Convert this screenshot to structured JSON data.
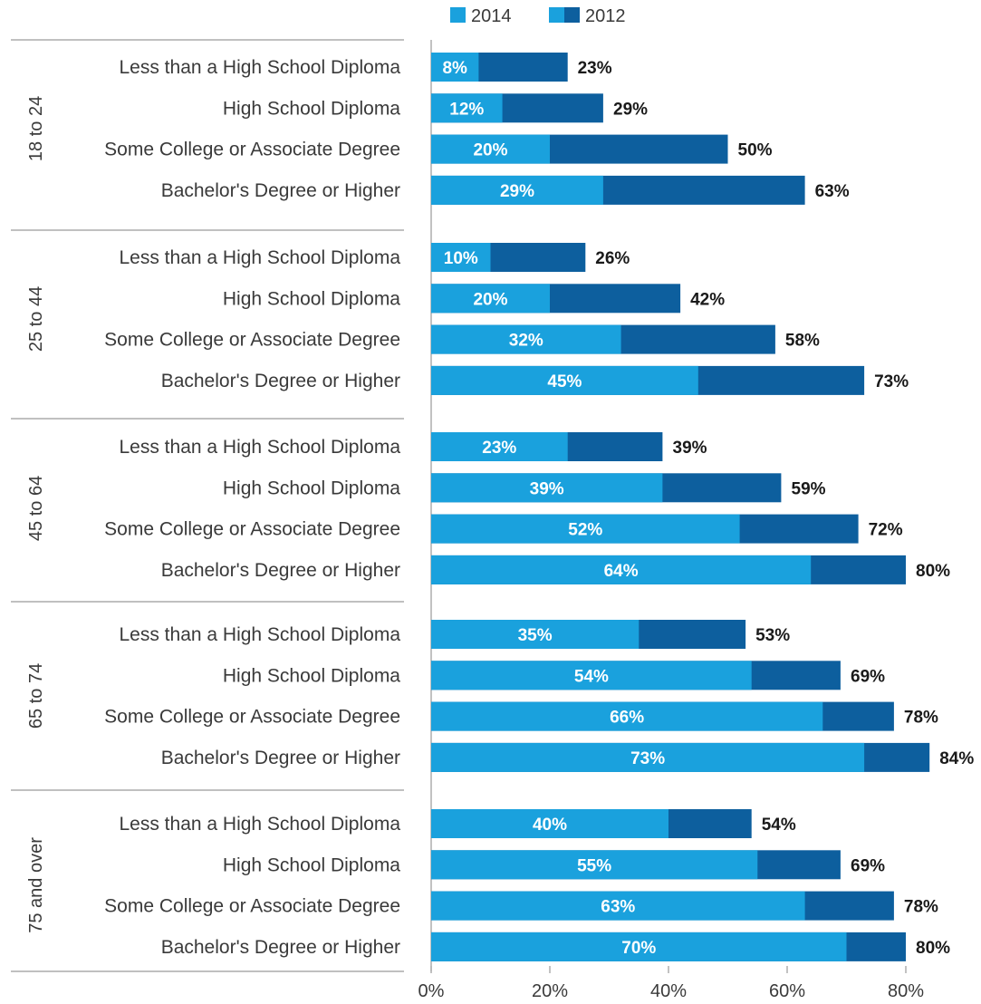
{
  "chart_data": {
    "type": "bar",
    "orientation": "horizontal",
    "stacking": "overlay",
    "xlim": [
      0,
      80
    ],
    "xticks": [
      "0%",
      "20%",
      "40%",
      "60%",
      "80%"
    ],
    "legend": {
      "placement": "top-center",
      "entries": [
        {
          "label": "2014",
          "color": "#1aa1dd"
        },
        {
          "label": "2012",
          "color": "#0d5f9e"
        }
      ]
    },
    "colors": {
      "y2014": "#1aa1dd",
      "y2012": "#0d5f9e"
    },
    "series": [
      {
        "name": "2014"
      },
      {
        "name": "2012"
      }
    ],
    "groups": [
      {
        "name": "18 to 24",
        "rows": [
          {
            "category": "Less than a High School Diploma",
            "v2014": 8,
            "l2014": "8%",
            "v2012": 23,
            "l2012": "23%"
          },
          {
            "category": "High School Diploma",
            "v2014": 12,
            "l2014": "12%",
            "v2012": 29,
            "l2012": "29%"
          },
          {
            "category": "Some College or Associate Degree",
            "v2014": 20,
            "l2014": "20%",
            "v2012": 50,
            "l2012": "50%"
          },
          {
            "category": "Bachelor's Degree or Higher",
            "v2014": 29,
            "l2014": "29%",
            "v2012": 63,
            "l2012": "63%"
          }
        ]
      },
      {
        "name": "25 to 44",
        "rows": [
          {
            "category": "Less than a High School Diploma",
            "v2014": 10,
            "l2014": "10%",
            "v2012": 26,
            "l2012": "26%"
          },
          {
            "category": "High School Diploma",
            "v2014": 20,
            "l2014": "20%",
            "v2012": 42,
            "l2012": "42%"
          },
          {
            "category": "Some College or Associate Degree",
            "v2014": 32,
            "l2014": "32%",
            "v2012": 58,
            "l2012": "58%"
          },
          {
            "category": "Bachelor's Degree or Higher",
            "v2014": 45,
            "l2014": "45%",
            "v2012": 73,
            "l2012": "73%"
          }
        ]
      },
      {
        "name": "45 to 64",
        "rows": [
          {
            "category": "Less than a High School Diploma",
            "v2014": 23,
            "l2014": "23%",
            "v2012": 39,
            "l2012": "39%"
          },
          {
            "category": "High School Diploma",
            "v2014": 39,
            "l2014": "39%",
            "v2012": 59,
            "l2012": "59%"
          },
          {
            "category": "Some College or Associate Degree",
            "v2014": 52,
            "l2014": "52%",
            "v2012": 72,
            "l2012": "72%"
          },
          {
            "category": "Bachelor's Degree or Higher",
            "v2014": 64,
            "l2014": "64%",
            "v2012": 80,
            "l2012": "80%"
          }
        ]
      },
      {
        "name": "65 to 74",
        "rows": [
          {
            "category": "Less than a High School Diploma",
            "v2014": 35,
            "l2014": "35%",
            "v2012": 53,
            "l2012": "53%"
          },
          {
            "category": "High School Diploma",
            "v2014": 54,
            "l2014": "54%",
            "v2012": 69,
            "l2012": "69%"
          },
          {
            "category": "Some College or Associate Degree",
            "v2014": 66,
            "l2014": "66%",
            "v2012": 78,
            "l2012": "78%"
          },
          {
            "category": "Bachelor's Degree or Higher",
            "v2014": 73,
            "l2014": "73%",
            "v2012": 84,
            "l2012": "84%"
          }
        ]
      },
      {
        "name": "75 and over",
        "rows": [
          {
            "category": "Less than a High School Diploma",
            "v2014": 40,
            "l2014": "40%",
            "v2012": 54,
            "l2012": "54%"
          },
          {
            "category": "High School Diploma",
            "v2014": 55,
            "l2014": "55%",
            "v2012": 69,
            "l2012": "69%"
          },
          {
            "category": "Some College or Associate Degree",
            "v2014": 63,
            "l2014": "63%",
            "v2012": 78,
            "l2012": "78%"
          },
          {
            "category": "Bachelor's Degree or Higher",
            "v2014": 70,
            "l2014": "70%",
            "v2012": 80,
            "l2012": "80%"
          }
        ]
      }
    ]
  }
}
